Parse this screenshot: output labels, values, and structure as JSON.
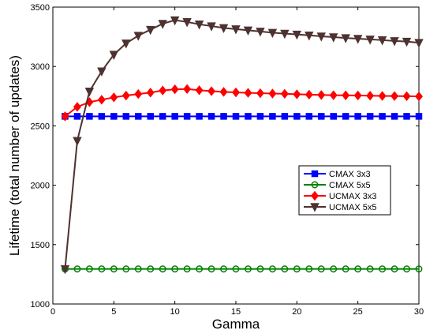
{
  "chart_data": {
    "type": "line",
    "xlabel": "Gamma",
    "ylabel": "Lifetime (total number of updates)",
    "xlim": [
      0,
      30
    ],
    "ylim": [
      1000,
      3500
    ],
    "xticks": [
      0,
      5,
      10,
      15,
      20,
      25,
      30
    ],
    "yticks": [
      1000,
      1500,
      2000,
      2500,
      3000,
      3500
    ],
    "grid": false,
    "legend_position": "right",
    "x": [
      1,
      2,
      3,
      4,
      5,
      6,
      7,
      8,
      9,
      10,
      11,
      12,
      13,
      14,
      15,
      16,
      17,
      18,
      19,
      20,
      21,
      22,
      23,
      24,
      25,
      26,
      27,
      28,
      29,
      30
    ],
    "series": [
      {
        "name": "CMAX 3x3",
        "color": "#0000ff",
        "marker": "square",
        "values": [
          2580,
          2580,
          2580,
          2580,
          2580,
          2580,
          2580,
          2580,
          2580,
          2580,
          2580,
          2580,
          2580,
          2580,
          2580,
          2580,
          2580,
          2580,
          2580,
          2580,
          2580,
          2580,
          2580,
          2580,
          2580,
          2580,
          2580,
          2580,
          2580,
          2580
        ]
      },
      {
        "name": "CMAX 5x5",
        "color": "#008000",
        "marker": "circle",
        "values": [
          1295,
          1295,
          1295,
          1295,
          1295,
          1295,
          1295,
          1295,
          1295,
          1295,
          1295,
          1295,
          1295,
          1295,
          1295,
          1295,
          1295,
          1295,
          1295,
          1295,
          1295,
          1295,
          1295,
          1295,
          1295,
          1295,
          1295,
          1295,
          1295,
          1295
        ]
      },
      {
        "name": "UCMAX 3x3",
        "color": "#ff0000",
        "marker": "diamond",
        "values": [
          2580,
          2660,
          2700,
          2720,
          2740,
          2755,
          2768,
          2780,
          2798,
          2808,
          2810,
          2800,
          2792,
          2786,
          2782,
          2778,
          2775,
          2772,
          2770,
          2766,
          2763,
          2760,
          2758,
          2757,
          2756,
          2754,
          2752,
          2751,
          2750,
          2748
        ]
      },
      {
        "name": "UCMAX 5x5",
        "color": "#4d3230",
        "marker": "triangle-down",
        "values": [
          1295,
          2375,
          2790,
          2960,
          3100,
          3195,
          3260,
          3310,
          3360,
          3390,
          3375,
          3355,
          3340,
          3325,
          3315,
          3305,
          3295,
          3285,
          3277,
          3270,
          3262,
          3254,
          3247,
          3240,
          3234,
          3228,
          3222,
          3215,
          3210,
          3200
        ]
      }
    ]
  }
}
